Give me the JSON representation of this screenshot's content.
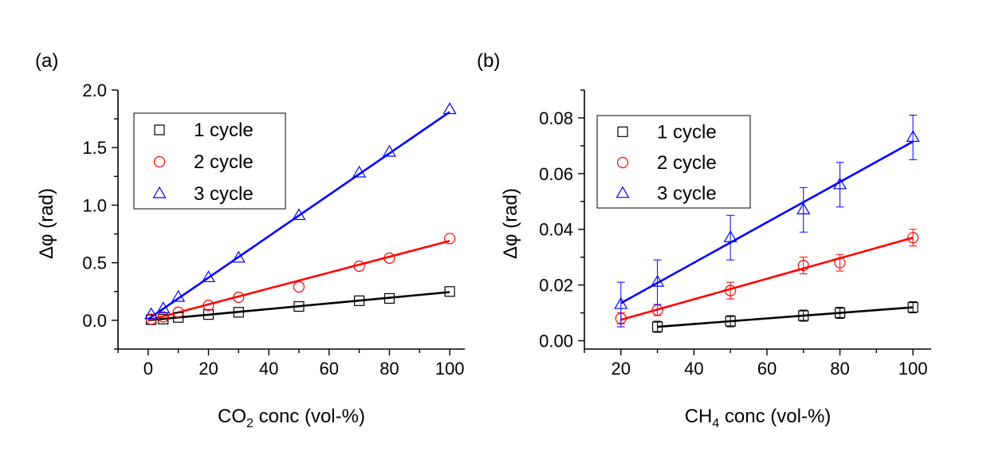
{
  "chart_data": [
    {
      "type": "scatter",
      "panel_label": "(a)",
      "xlabel_main": "CO",
      "xlabel_sub": "2",
      "xlabel_rest": " conc (vol-%)",
      "ylabel": "Δφ (rad)",
      "xlim": [
        -10,
        105
      ],
      "ylim": [
        -0.25,
        2.0
      ],
      "xticks": [
        0,
        20,
        40,
        60,
        80,
        100
      ],
      "xtick_labels": [
        "0",
        "20",
        "40",
        "60",
        "80",
        "100"
      ],
      "yticks": [
        0.0,
        0.5,
        1.0,
        1.5,
        2.0
      ],
      "ytick_labels": [
        "0.0",
        "0.5",
        "1.0",
        "1.5",
        "2.0"
      ],
      "legend_position": "top-left",
      "series": [
        {
          "name": "1 cycle",
          "marker": "square",
          "color": "#000000",
          "x": [
            1,
            5,
            10,
            20,
            30,
            50,
            70,
            80,
            100
          ],
          "y": [
            0.005,
            0.01,
            0.025,
            0.05,
            0.07,
            0.12,
            0.17,
            0.19,
            0.25
          ],
          "fit": [
            0,
            0.0,
            100,
            0.245
          ]
        },
        {
          "name": "2 cycle",
          "marker": "circle",
          "color": "#ff0000",
          "x": [
            1,
            5,
            10,
            20,
            30,
            50,
            70,
            80,
            100
          ],
          "y": [
            0.01,
            0.03,
            0.07,
            0.13,
            0.2,
            0.29,
            0.47,
            0.54,
            0.71
          ],
          "fit": [
            0,
            0.0,
            100,
            0.69
          ]
        },
        {
          "name": "3 cycle",
          "marker": "triangle",
          "color": "#0000ff",
          "x": [
            1,
            5,
            10,
            20,
            30,
            50,
            70,
            80,
            100
          ],
          "y": [
            0.05,
            0.1,
            0.2,
            0.37,
            0.54,
            0.91,
            1.28,
            1.46,
            1.83
          ],
          "fit": [
            0,
            0.01,
            100,
            1.81
          ]
        }
      ]
    },
    {
      "type": "scatter",
      "panel_label": "(b)",
      "xlabel_main": "CH",
      "xlabel_sub": "4",
      "xlabel_rest": " conc (vol-%)",
      "ylabel": "Δφ (rad)",
      "xlim": [
        10,
        105
      ],
      "ylim": [
        -0.003,
        0.09
      ],
      "xticks": [
        20,
        40,
        60,
        80,
        100
      ],
      "xtick_labels": [
        "20",
        "40",
        "60",
        "80",
        "100"
      ],
      "yticks": [
        0.0,
        0.02,
        0.04,
        0.06,
        0.08
      ],
      "ytick_labels": [
        "0.00",
        "0.02",
        "0.04",
        "0.06",
        "0.08"
      ],
      "legend_position": "top-left",
      "series": [
        {
          "name": "1 cycle",
          "marker": "square",
          "color": "#000000",
          "x": [
            30,
            50,
            70,
            80,
            100
          ],
          "y": [
            0.005,
            0.007,
            0.009,
            0.01,
            0.012
          ],
          "err": [
            0.002,
            0.002,
            0.002,
            0.002,
            0.002
          ],
          "fit": [
            30,
            0.005,
            100,
            0.012
          ]
        },
        {
          "name": "2 cycle",
          "marker": "circle",
          "color": "#ff0000",
          "x": [
            20,
            30,
            50,
            70,
            80,
            100
          ],
          "y": [
            0.008,
            0.011,
            0.018,
            0.027,
            0.028,
            0.037
          ],
          "err": [
            0.002,
            0.002,
            0.003,
            0.003,
            0.003,
            0.003
          ],
          "fit": [
            20,
            0.0075,
            100,
            0.037
          ]
        },
        {
          "name": "3 cycle",
          "marker": "triangle",
          "color": "#0000ff",
          "x": [
            20,
            30,
            50,
            70,
            80,
            100
          ],
          "y": [
            0.013,
            0.021,
            0.037,
            0.047,
            0.056,
            0.073
          ],
          "err": [
            0.008,
            0.008,
            0.008,
            0.008,
            0.008,
            0.008
          ],
          "fit": [
            20,
            0.0135,
            100,
            0.0715
          ]
        }
      ]
    }
  ]
}
